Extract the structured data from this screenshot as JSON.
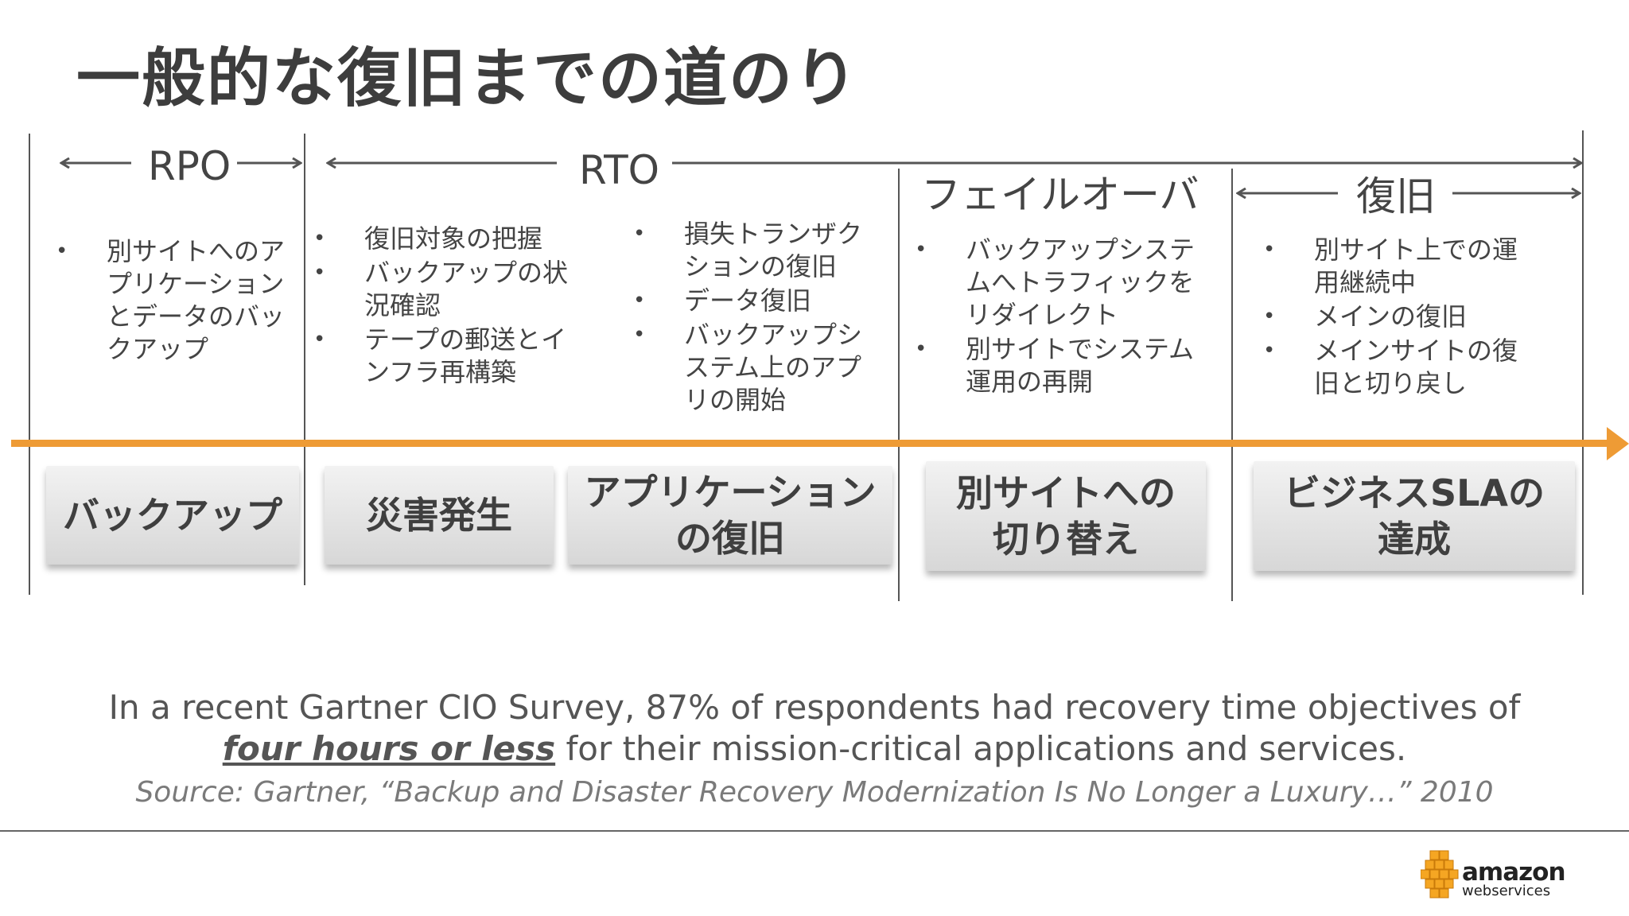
{
  "title": "一般的な復旧までの道のり",
  "spans": {
    "rpo": "RPO",
    "rto": "RTO",
    "failover": "フェイルオーバ",
    "recovery": "復旧"
  },
  "bullet_groups": [
    {
      "items": [
        "別サイトへのアプリケーションとデータのバックアップ"
      ]
    },
    {
      "items": [
        "復旧対象の把握",
        "バックアップの状況確認",
        "テープの郵送とインフラ再構築"
      ]
    },
    {
      "items": [
        "損失トランザクションの復旧",
        "データ復旧",
        "バックアップシステム上のアプリの開始"
      ]
    },
    {
      "items": [
        "バックアップシステムへトラフィックをリダイレクト",
        "別サイトでシステム運用の再開"
      ]
    },
    {
      "items": [
        "別サイト上での運用継続中",
        "メインの復旧",
        "メインサイトの復旧と切り戻し"
      ]
    }
  ],
  "phases": [
    {
      "label": "バックアップ"
    },
    {
      "label": "災害発生"
    },
    {
      "label": "アプリケーション\nの復旧"
    },
    {
      "label": "別サイトへの\n切り替え"
    },
    {
      "label": "ビジネスSLAの\n達成"
    }
  ],
  "quote": {
    "line1": "In a recent Gartner CIO Survey, 87% of respondents had recovery time objectives of",
    "emphasis": "four hours or less",
    "line2_rest": " for their mission-critical applications and services."
  },
  "source": "Source: Gartner, “Backup and Disaster Recovery Modernization Is No Longer a Luxury…” 2010",
  "logo": {
    "brand": "amazon",
    "sub": "webservices"
  },
  "colors": {
    "timeline": "#ee9b35",
    "logo_cubes": "#f5a623"
  }
}
